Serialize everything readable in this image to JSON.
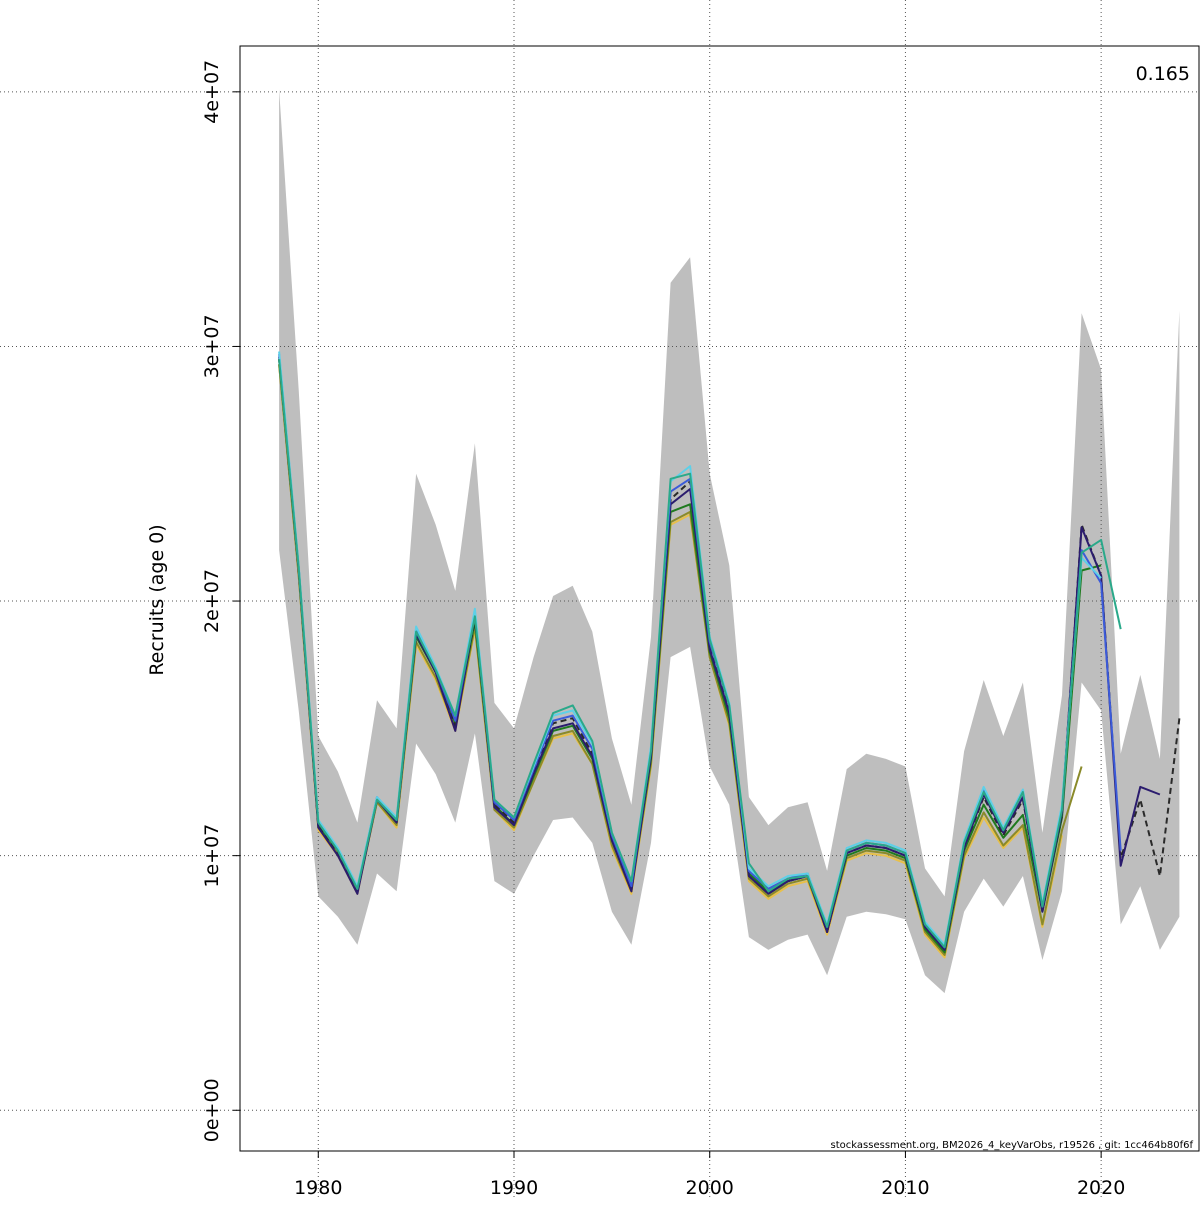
{
  "chart_data": {
    "type": "line",
    "ylabel": "Recruits (age 0)",
    "xlabel": "",
    "title": "",
    "annotation": "0.165",
    "footer": "stockassessment.org, BM2026_4_keyVarObs, r19526 , git: 1cc464b80f6f",
    "x_ticks": [
      1980,
      1990,
      2000,
      2010,
      2020
    ],
    "y_ticks": [
      0,
      10000000,
      20000000,
      30000000,
      40000000
    ],
    "y_tick_labels": [
      "0e+00",
      "1e+07",
      "2e+07",
      "3e+07",
      "4e+07"
    ],
    "xlim": [
      1976,
      2025
    ],
    "ylim": [
      -1600000,
      41800000
    ],
    "grid": true,
    "confidence_band": {
      "x": [
        1978,
        1979,
        1980,
        1981,
        1982,
        1983,
        1984,
        1985,
        1986,
        1987,
        1988,
        1989,
        1990,
        1991,
        1992,
        1993,
        1994,
        1995,
        1996,
        1997,
        1998,
        1999,
        2000,
        2001,
        2002,
        2003,
        2004,
        2005,
        2006,
        2007,
        2008,
        2009,
        2010,
        2011,
        2012,
        2013,
        2014,
        2015,
        2016,
        2017,
        2018,
        2019,
        2020,
        2021,
        2022,
        2023,
        2024
      ],
      "lower": [
        22000000,
        15700000,
        8400000,
        7600000,
        6500000,
        9300000,
        8600000,
        14400000,
        13200000,
        11300000,
        14800000,
        9000000,
        8500000,
        10000000,
        11400000,
        11500000,
        10500000,
        7800000,
        6500000,
        10500000,
        17800000,
        18200000,
        13500000,
        12000000,
        6800000,
        6300000,
        6700000,
        6900000,
        5300000,
        7600000,
        7800000,
        7700000,
        7500000,
        5300000,
        4600000,
        7800000,
        9100000,
        8000000,
        9200000,
        5900000,
        8600000,
        16800000,
        15700000,
        7300000,
        8800000,
        6300000,
        7600000
      ],
      "upper": [
        40100000,
        28300000,
        14700000,
        13300000,
        11300000,
        16100000,
        15000000,
        25000000,
        23000000,
        20400000,
        26200000,
        16000000,
        15000000,
        17800000,
        20200000,
        20600000,
        18800000,
        14600000,
        12000000,
        18600000,
        32500000,
        33500000,
        25000000,
        21400000,
        12300000,
        11200000,
        11900000,
        12100000,
        9400000,
        13400000,
        14000000,
        13800000,
        13500000,
        9500000,
        8400000,
        14100000,
        16900000,
        14700000,
        16800000,
        10900000,
        16300000,
        31300000,
        29100000,
        14000000,
        17100000,
        13800000,
        31400000
      ]
    },
    "series": [
      {
        "color": "#e8c04a",
        "dashed": false,
        "x": [
          1978,
          1979,
          1980,
          1981,
          1982,
          1983,
          1984,
          1985,
          1986,
          1987,
          1988,
          1989,
          1990,
          1991,
          1992,
          1993,
          1994,
          1995,
          1996,
          1997,
          1998,
          1999,
          2000,
          2001,
          2002,
          2003,
          2004,
          2005,
          2006,
          2007,
          2008,
          2009,
          2010,
          2011,
          2012,
          2013,
          2014,
          2015,
          2016,
          2017,
          2018
        ],
        "values": [
          29300000,
          21000000,
          11000000,
          10000000,
          8500000,
          12100000,
          11100000,
          18300000,
          16900000,
          14900000,
          18900000,
          11800000,
          11000000,
          12900000,
          14600000,
          14800000,
          13600000,
          10300000,
          8500000,
          13500000,
          23000000,
          23400000,
          17800000,
          15100000,
          9000000,
          8300000,
          8800000,
          9000000,
          6900000,
          9800000,
          10100000,
          10000000,
          9700000,
          6900000,
          6000000,
          9900000,
          11500000,
          10300000,
          11100000,
          7200000,
          10800000
        ]
      },
      {
        "color": "#8a8a2a",
        "dashed": false,
        "x": [
          1978,
          1979,
          1980,
          1981,
          1982,
          1983,
          1984,
          1985,
          1986,
          1987,
          1988,
          1989,
          1990,
          1991,
          1992,
          1993,
          1994,
          1995,
          1996,
          1997,
          1998,
          1999,
          2000,
          2001,
          2002,
          2003,
          2004,
          2005,
          2006,
          2007,
          2008,
          2009,
          2010,
          2011,
          2012,
          2013,
          2014,
          2015,
          2016,
          2017,
          2018,
          2019
        ],
        "values": [
          29300000,
          21000000,
          11100000,
          10100000,
          8600000,
          12100000,
          11200000,
          18400000,
          17000000,
          15000000,
          19000000,
          11800000,
          11100000,
          12900000,
          14700000,
          14900000,
          13600000,
          10400000,
          8600000,
          13600000,
          23100000,
          23500000,
          17800000,
          15200000,
          9100000,
          8400000,
          8900000,
          9100000,
          7000000,
          9900000,
          10200000,
          10100000,
          9800000,
          7000000,
          6100000,
          10000000,
          11700000,
          10400000,
          11200000,
          7300000,
          11000000,
          13500000
        ]
      },
      {
        "color": "#1f7a1f",
        "dashed": false,
        "x": [
          1978,
          1979,
          1980,
          1981,
          1982,
          1983,
          1984,
          1985,
          1986,
          1987,
          1988,
          1989,
          1990,
          1991,
          1992,
          1993,
          1994,
          1995,
          1996,
          1997,
          1998,
          1999,
          2000,
          2001,
          2002,
          2003,
          2004,
          2005,
          2006,
          2007,
          2008,
          2009,
          2010,
          2011,
          2012,
          2013,
          2014,
          2015,
          2016,
          2017,
          2018,
          2019,
          2020
        ],
        "values": [
          29500000,
          21200000,
          11200000,
          10200000,
          8700000,
          12200000,
          11300000,
          18600000,
          17200000,
          15200000,
          19200000,
          12000000,
          11200000,
          13100000,
          14900000,
          15100000,
          13800000,
          10600000,
          8700000,
          13800000,
          23500000,
          23800000,
          18000000,
          15400000,
          9300000,
          8600000,
          9000000,
          9200000,
          7100000,
          10000000,
          10300000,
          10200000,
          9900000,
          7100000,
          6200000,
          10200000,
          12000000,
          10700000,
          11600000,
          7800000,
          11500000,
          21200000,
          21400000
        ]
      },
      {
        "color": "#2a2a2a",
        "dashed": true,
        "x": [
          1978,
          1979,
          1980,
          1981,
          1982,
          1983,
          1984,
          1985,
          1986,
          1987,
          1988,
          1989,
          1990,
          1991,
          1992,
          1993,
          1994,
          1995,
          1996,
          1997,
          1998,
          1999,
          2000,
          2001,
          2002,
          2003,
          2004,
          2005,
          2006,
          2007,
          2008,
          2009,
          2010,
          2011,
          2012,
          2013,
          2014,
          2015,
          2016,
          2017,
          2018,
          2019,
          2020,
          2021,
          2022,
          2023,
          2024
        ],
        "values": [
          29500000,
          21200000,
          11200000,
          10100000,
          8600000,
          12200000,
          11400000,
          18700000,
          17200000,
          15100000,
          19300000,
          12000000,
          11300000,
          13300000,
          15200000,
          15400000,
          14000000,
          10700000,
          8700000,
          14000000,
          24000000,
          24700000,
          18300000,
          15800000,
          9200000,
          8500000,
          9000000,
          9200000,
          7000000,
          10100000,
          10400000,
          10300000,
          10000000,
          7200000,
          6300000,
          10300000,
          12300000,
          10800000,
          12200000,
          7900000,
          11600000,
          23000000,
          21000000,
          9900000,
          12200000,
          9200000,
          15400000
        ]
      },
      {
        "color": "#2b1c6e",
        "dashed": false,
        "x": [
          1978,
          1979,
          1980,
          1981,
          1982,
          1983,
          1984,
          1985,
          1986,
          1987,
          1988,
          1989,
          1990,
          1991,
          1992,
          1993,
          1994,
          1995,
          1996,
          1997,
          1998,
          1999,
          2000,
          2001,
          2002,
          2003,
          2004,
          2005,
          2006,
          2007,
          2008,
          2009,
          2010,
          2011,
          2012,
          2013,
          2014,
          2015,
          2016,
          2017,
          2018,
          2019,
          2020,
          2021,
          2022,
          2023
        ],
        "values": [
          29600000,
          21300000,
          11100000,
          10000000,
          8500000,
          12200000,
          11300000,
          18700000,
          17200000,
          14900000,
          19500000,
          11900000,
          11200000,
          13200000,
          15000000,
          15200000,
          13900000,
          10600000,
          8600000,
          13900000,
          23800000,
          24400000,
          18100000,
          15600000,
          9200000,
          8500000,
          9000000,
          9200000,
          7000000,
          10100000,
          10400000,
          10300000,
          10000000,
          7200000,
          6300000,
          10300000,
          12400000,
          10900000,
          12300000,
          7800000,
          11700000,
          22900000,
          21000000,
          9600000,
          12700000,
          12400000
        ]
      },
      {
        "color": "#3b5bd9",
        "dashed": false,
        "x": [
          1978,
          1979,
          1980,
          1981,
          1982,
          1983,
          1984,
          1985,
          1986,
          1987,
          1988,
          1989,
          1990,
          1991,
          1992,
          1993,
          1994,
          1995,
          1996,
          1997,
          1998,
          1999,
          2000,
          2001,
          2002,
          2003,
          2004,
          2005,
          2006,
          2007,
          2008,
          2009,
          2010,
          2011,
          2012,
          2013,
          2014,
          2015,
          2016,
          2017,
          2018,
          2019,
          2020,
          2021
        ],
        "values": [
          29700000,
          21300000,
          11300000,
          10200000,
          8700000,
          12300000,
          11400000,
          18900000,
          17300000,
          15300000,
          19500000,
          12100000,
          11400000,
          13400000,
          15300000,
          15500000,
          14200000,
          10800000,
          8800000,
          14200000,
          24300000,
          24800000,
          18400000,
          15900000,
          9400000,
          8700000,
          9100000,
          9300000,
          7200000,
          10200000,
          10500000,
          10400000,
          10100000,
          7300000,
          6400000,
          10500000,
          12600000,
          11000000,
          12500000,
          8000000,
          11900000,
          22000000,
          20700000,
          10200000
        ]
      },
      {
        "color": "#5ed0e8",
        "dashed": false,
        "x": [
          1978,
          1979,
          1980,
          1981,
          1982,
          1983,
          1984,
          1985,
          1986,
          1987,
          1988,
          1989,
          1990,
          1991,
          1992,
          1993,
          1994,
          1995,
          1996,
          1997,
          1998,
          1999,
          2000,
          2001,
          2002,
          2003,
          2004,
          2005,
          2006,
          2007,
          2008,
          2009,
          2010,
          2011,
          2012,
          2013,
          2014,
          2015,
          2016,
          2017,
          2018,
          2019,
          2020
        ],
        "values": [
          29800000,
          21400000,
          11400000,
          10300000,
          8800000,
          12300000,
          11500000,
          19000000,
          17400000,
          15500000,
          19700000,
          12200000,
          11500000,
          13500000,
          15500000,
          15700000,
          14400000,
          10900000,
          9000000,
          14300000,
          24700000,
          25300000,
          18600000,
          16000000,
          9500000,
          8800000,
          9200000,
          9300000,
          7300000,
          10300000,
          10600000,
          10500000,
          10200000,
          7400000,
          6500000,
          10600000,
          12700000,
          11100000,
          12600000,
          8100000,
          12000000,
          21700000,
          20900000
        ]
      },
      {
        "color": "#2aa98a",
        "dashed": false,
        "x": [
          1978,
          1979,
          1980,
          1981,
          1982,
          1983,
          1984,
          1985,
          1986,
          1987,
          1988,
          1989,
          1990,
          1991,
          1992,
          1993,
          1994,
          1995,
          1996,
          1997,
          1998,
          1999,
          2000,
          2001,
          2002,
          2003,
          2004,
          2005,
          2006,
          2007,
          2008,
          2009,
          2010,
          2011,
          2012,
          2013,
          2014,
          2015,
          2016,
          2017,
          2018,
          2019,
          2020,
          2021
        ],
        "values": [
          29500000,
          21300000,
          11300000,
          10200000,
          8700000,
          12200000,
          11400000,
          18800000,
          17300000,
          15500000,
          19400000,
          12200000,
          11500000,
          13600000,
          15600000,
          15900000,
          14500000,
          10900000,
          9000000,
          14100000,
          24800000,
          25000000,
          18500000,
          15900000,
          9700000,
          8600000,
          9100000,
          9200000,
          7200000,
          10200000,
          10500000,
          10400000,
          10100000,
          7300000,
          6400000,
          10500000,
          12500000,
          11000000,
          12500000,
          8000000,
          11800000,
          21900000,
          22400000,
          18900000
        ]
      }
    ]
  }
}
